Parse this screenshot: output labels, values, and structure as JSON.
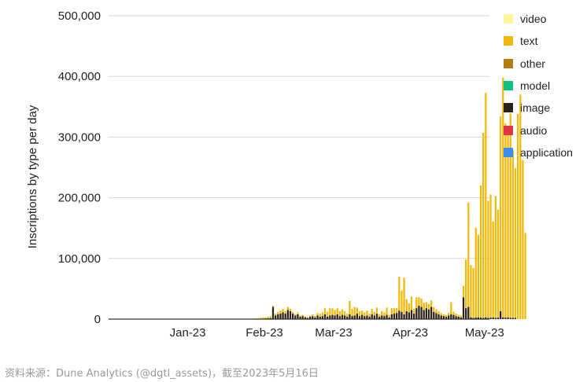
{
  "colors": {
    "video": "#fff59d",
    "text": "#f0b90b",
    "other": "#b07d12",
    "model": "#0fbf7a",
    "image": "#2a2118",
    "audio": "#dc3545",
    "application": "#3b8def",
    "grid": "#d6d6d6",
    "axis": "#333333"
  },
  "legend": [
    {
      "label": "video",
      "color": "#fff59d"
    },
    {
      "label": "text",
      "color": "#f0b90b"
    },
    {
      "label": "other",
      "color": "#b07d12"
    },
    {
      "label": "model",
      "color": "#0fbf7a"
    },
    {
      "label": "image",
      "color": "#2a2118"
    },
    {
      "label": "audio",
      "color": "#dc3545"
    },
    {
      "label": "application",
      "color": "#3b8def"
    }
  ],
  "source_note": "资料来源：Dune Analytics (@dgtl_assets)，截至2023年5月16日",
  "chart_data": {
    "type": "bar",
    "stacked": true,
    "ylabel": "Inscriptions by type per day",
    "ylim": [
      0,
      500000
    ],
    "yticks": [
      0,
      100000,
      200000,
      300000,
      400000,
      500000
    ],
    "ytick_labels": [
      "0",
      "100,000",
      "200,000",
      "300,000",
      "400,000",
      "500,000"
    ],
    "x_start": "2022-12-14",
    "x_end": "2023-05-16",
    "xtick_dates": [
      "2023-01-15",
      "2023-02-15",
      "2023-03-15",
      "2023-04-15",
      "2023-05-15"
    ],
    "xtick_labels": [
      "Jan-23",
      "Feb-23",
      "Mar-23",
      "Apr-23",
      "May-23"
    ],
    "grid": true,
    "legend_position": "right",
    "series": [
      {
        "name": "image",
        "start_date": "2022-12-14",
        "values": [
          0,
          0,
          0,
          0,
          0,
          0,
          0,
          0,
          0,
          0,
          0,
          0,
          0,
          0,
          0,
          0,
          0,
          0,
          0,
          0,
          0,
          0,
          0,
          0,
          0,
          0,
          0,
          0,
          0,
          0,
          0,
          0,
          0,
          0,
          0,
          0,
          0,
          0,
          0,
          0,
          0,
          0,
          0,
          0,
          0,
          0,
          0,
          0,
          0,
          0,
          0,
          0,
          0,
          0,
          0,
          0,
          100,
          200,
          300,
          400,
          500,
          800,
          1000,
          1200,
          1500,
          1800,
          20000,
          6000,
          8000,
          9000,
          11000,
          9000,
          15000,
          13000,
          9000,
          6000,
          8000,
          4000,
          5000,
          3000,
          2000,
          4000,
          5000,
          3000,
          6000,
          4000,
          5000,
          8000,
          4000,
          6000,
          7000,
          6000,
          8000,
          5000,
          7000,
          6000,
          4000,
          8000,
          5000,
          6000,
          9000,
          5000,
          7000,
          5000,
          6000,
          4000,
          8000,
          6000,
          9000,
          4000,
          6000,
          5000,
          7000,
          3000,
          8000,
          9000,
          10000,
          14000,
          12000,
          8000,
          13000,
          11000,
          15000,
          9000,
          18000,
          22000,
          20000,
          15000,
          18000,
          16000,
          20000,
          12000,
          10000,
          8000,
          6000,
          5000,
          4000,
          6000,
          8000,
          7000,
          5000,
          4000,
          3000,
          36000,
          18000,
          20000,
          3000,
          2000,
          2500,
          3000,
          2500,
          2000,
          3000,
          2000,
          2500,
          3000,
          2000,
          2500,
          13000,
          3000,
          2500,
          3000,
          2000,
          2000,
          2000
        ]
      },
      {
        "name": "text",
        "start_date": "2022-12-14",
        "values": [
          0,
          0,
          0,
          0,
          0,
          0,
          0,
          0,
          0,
          0,
          0,
          0,
          0,
          0,
          0,
          0,
          0,
          0,
          0,
          0,
          0,
          0,
          0,
          0,
          0,
          0,
          0,
          0,
          0,
          0,
          0,
          0,
          0,
          0,
          0,
          0,
          0,
          0,
          0,
          0,
          0,
          0,
          0,
          0,
          0,
          0,
          0,
          0,
          0,
          0,
          0,
          0,
          0,
          0,
          0,
          0,
          200,
          300,
          500,
          800,
          1000,
          1500,
          2000,
          2000,
          2500,
          3000,
          2000,
          3000,
          4000,
          5000,
          6000,
          4000,
          5000,
          4000,
          3000,
          2000,
          3000,
          2000,
          2000,
          1500,
          1000,
          2000,
          3000,
          2000,
          4000,
          5000,
          6000,
          10000,
          8000,
          12000,
          11000,
          9000,
          10000,
          8000,
          9000,
          7000,
          5000,
          22000,
          12000,
          14000,
          10000,
          8000,
          7000,
          6000,
          8000,
          5000,
          9000,
          6000,
          10000,
          4000,
          7000,
          6000,
          12000,
          4000,
          10000,
          9000,
          8000,
          56000,
          35000,
          60000,
          20000,
          15000,
          22000,
          8000,
          18000,
          14000,
          14000,
          12000,
          10000,
          9000,
          11000,
          8000,
          6000,
          5000,
          4000,
          3000,
          3000,
          4000,
          20000,
          5000,
          4000,
          3000,
          3000,
          19000,
          80000,
          172000,
          86000,
          82000,
          148000,
          136000,
          218000,
          305000,
          370000,
          193000,
          203000,
          158000,
          201000,
          178000,
          321000,
          395000,
          320000,
          315000,
          337000,
          277000,
          247000,
          338000,
          370000,
          262000,
          142000
        ]
      }
    ]
  }
}
